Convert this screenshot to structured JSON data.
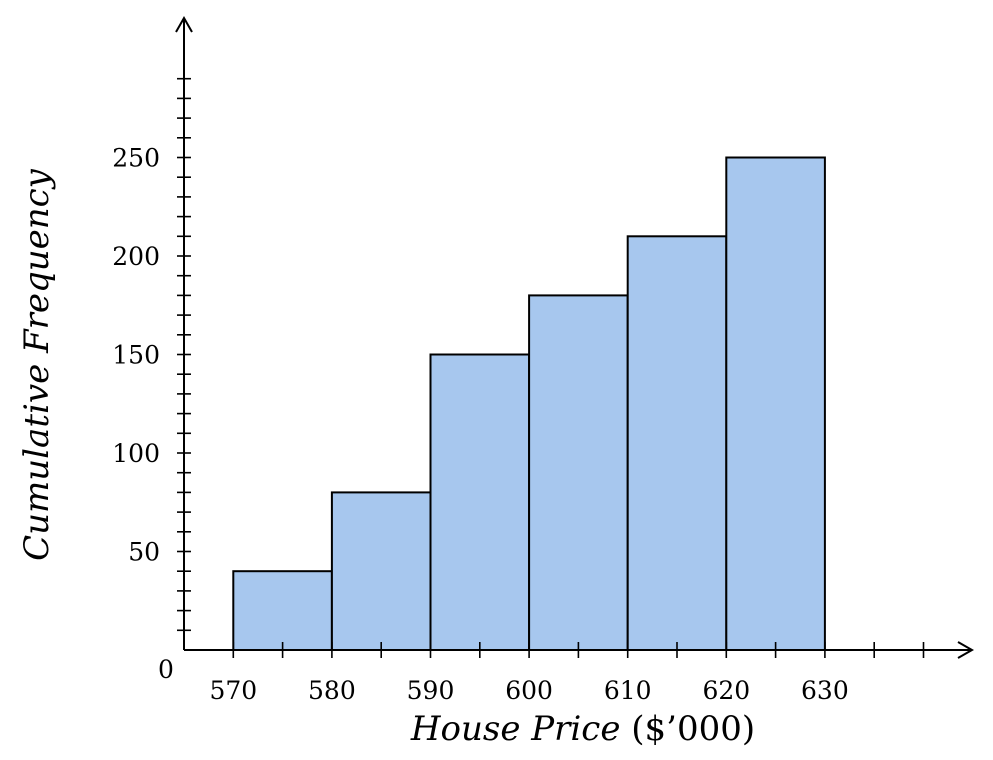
{
  "chart_data": {
    "type": "bar",
    "subtype": "histogram",
    "x": {
      "label_italic": "House Price",
      "label_rest": " ($’000)",
      "range": [
        565,
        640
      ],
      "tick_labels": [
        "570",
        "580",
        "590",
        "600",
        "610",
        "620",
        "630"
      ]
    },
    "y": {
      "label": "Cumulative Frequency",
      "range": [
        0,
        300
      ],
      "tick_labels": [
        "50",
        "100",
        "150",
        "200",
        "250"
      ],
      "origin_label": "0"
    },
    "bins": [
      {
        "from": 570,
        "to": 580,
        "value": 40
      },
      {
        "from": 580,
        "to": 590,
        "value": 80
      },
      {
        "from": 590,
        "to": 600,
        "value": 150
      },
      {
        "from": 600,
        "to": 610,
        "value": 180
      },
      {
        "from": 610,
        "to": 620,
        "value": 210
      },
      {
        "from": 620,
        "to": 630,
        "value": 250
      }
    ],
    "colors": {
      "bar_fill": "#a7c7ee",
      "bar_stroke": "#000000",
      "axis": "#000000"
    },
    "grid": false,
    "legend": "none"
  }
}
